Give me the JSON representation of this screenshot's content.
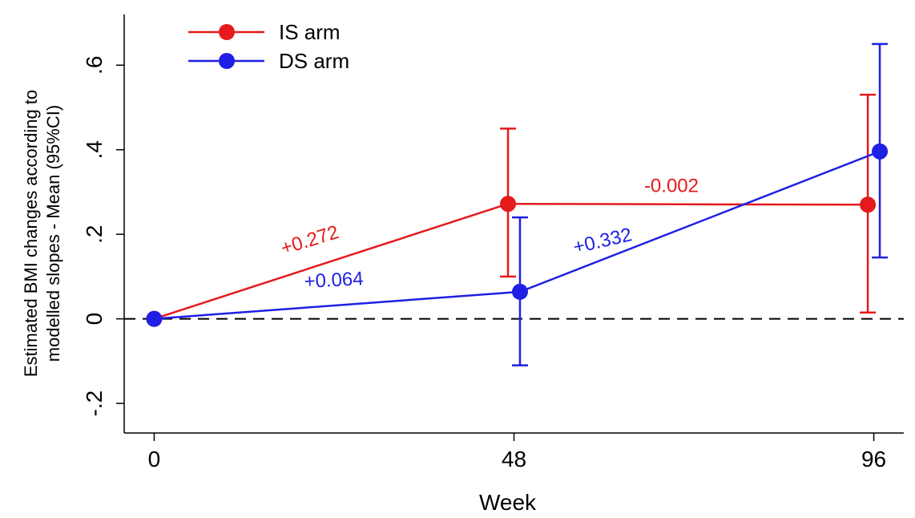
{
  "chart_data": {
    "type": "line",
    "title": "",
    "xlabel": "Week",
    "ylabel": "Estimated BMI changes according to modelled slopes - Mean (95%CI)",
    "ylabel_lines": [
      "Estimated BMI changes according to",
      "modelled slopes - Mean (95%CI)"
    ],
    "x": [
      0,
      48,
      96
    ],
    "xlim": [
      -4,
      100
    ],
    "ylim": [
      -0.27,
      0.72
    ],
    "x_ticks": [
      {
        "value": 0,
        "label": "0"
      },
      {
        "value": 48,
        "label": "48"
      },
      {
        "value": 96,
        "label": "96"
      }
    ],
    "y_ticks": [
      {
        "value": -0.2,
        "label": "-.2"
      },
      {
        "value": 0,
        "label": "0"
      },
      {
        "value": 0.2,
        "label": ".2"
      },
      {
        "value": 0.4,
        "label": ".4"
      },
      {
        "value": 0.6,
        "label": ".6"
      }
    ],
    "reference_line": {
      "y": 0,
      "style": "dashed"
    },
    "legend": {
      "position": "top-left"
    },
    "grid": false,
    "series": [
      {
        "name": "IS arm",
        "color": "#e41a1c",
        "x": [
          0,
          48,
          96
        ],
        "values": [
          0,
          0.272,
          0.27
        ],
        "ci_low": [
          null,
          0.1,
          0.015
        ],
        "ci_high": [
          null,
          0.45,
          0.53
        ],
        "x_offset": [
          0,
          -0.8,
          -0.8
        ]
      },
      {
        "name": "DS arm",
        "color": "#1f1fe6",
        "x": [
          0,
          48,
          96
        ],
        "values": [
          0,
          0.064,
          0.396
        ],
        "ci_low": [
          null,
          -0.11,
          0.145
        ],
        "ci_high": [
          null,
          0.24,
          0.65
        ],
        "x_offset": [
          0,
          0.8,
          0.8
        ]
      }
    ],
    "annotations": [
      {
        "text": "+0.272",
        "series": 0,
        "x": 21,
        "y": 0.172,
        "angle": -17
      },
      {
        "text": "-0.002",
        "series": 0,
        "x": 69,
        "y": 0.3,
        "angle": 0
      },
      {
        "text": "+0.064",
        "series": 1,
        "x": 24,
        "y": 0.077,
        "angle": -3
      },
      {
        "text": "+0.332",
        "series": 1,
        "x": 60,
        "y": 0.17,
        "angle": -13
      }
    ]
  }
}
